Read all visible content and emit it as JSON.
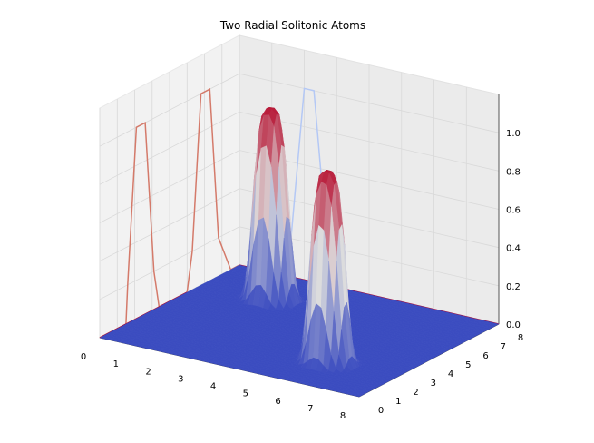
{
  "chart_data": {
    "type": "surface3d",
    "title": "Two Radial Solitonic Atoms",
    "xlabel": "",
    "ylabel": "",
    "zlabel": "",
    "xlim": [
      0,
      8
    ],
    "ylim": [
      0,
      8
    ],
    "zlim": [
      0,
      1.2
    ],
    "x_ticks": [
      "0",
      "1",
      "2",
      "3",
      "4",
      "5",
      "6",
      "7",
      "8"
    ],
    "y_ticks": [
      "0",
      "1",
      "2",
      "3",
      "4",
      "5",
      "6",
      "7",
      "8"
    ],
    "z_ticks": [
      "0.0",
      "0.2",
      "0.4",
      "0.6",
      "0.8",
      "1.0"
    ],
    "grid": true,
    "colormap": "coolwarm",
    "colors": {
      "low": "#3b4cc0",
      "mid": "#dddddd",
      "high": "#b40426"
    },
    "series": [
      {
        "center": [
          2.1,
          5.9
        ],
        "peak": 1.0,
        "radius": 0.55
      },
      {
        "center": [
          5.9,
          2.1
        ],
        "peak": 1.0,
        "radius": 0.55
      }
    ],
    "projections": {
      "x_wall": {
        "x": [
          0,
          1,
          1.5,
          2.0,
          2.1,
          2.3,
          2.8,
          3.4,
          8
        ],
        "z": [
          0,
          0,
          0.02,
          1.0,
          1.0,
          1.0,
          0.02,
          0,
          0
        ]
      },
      "y_wall": {
        "y": [
          0,
          1.5,
          1.6,
          2.1,
          2.6,
          3.1,
          3.4,
          5.0,
          5.3,
          5.8,
          6.3,
          6.8,
          7.5,
          8
        ],
        "z": [
          0,
          0,
          0.2,
          1.0,
          1.0,
          0.2,
          0,
          0,
          0.2,
          1.0,
          1.0,
          0.2,
          0,
          0
        ]
      }
    }
  }
}
